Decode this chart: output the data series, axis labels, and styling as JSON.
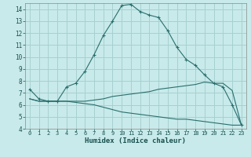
{
  "xlabel": "Humidex (Indice chaleur)",
  "background_color": "#c8eaea",
  "plot_bg_color": "#c8eaea",
  "grid_color": "#a8d0d0",
  "line_color": "#2a6e6e",
  "xlim": [
    -0.5,
    23.5
  ],
  "ylim": [
    4,
    14.5
  ],
  "yticks": [
    4,
    5,
    6,
    7,
    8,
    9,
    10,
    11,
    12,
    13,
    14
  ],
  "xticks": [
    0,
    1,
    2,
    3,
    4,
    5,
    6,
    7,
    8,
    9,
    10,
    11,
    12,
    13,
    14,
    15,
    16,
    17,
    18,
    19,
    20,
    21,
    22,
    23
  ],
  "curve1_x": [
    0,
    1,
    2,
    3,
    4,
    5,
    6,
    7,
    8,
    9,
    10,
    11,
    12,
    13,
    14,
    15,
    16,
    17,
    18,
    19,
    20,
    21,
    22,
    23
  ],
  "curve1_y": [
    7.3,
    6.5,
    6.3,
    6.3,
    7.5,
    7.8,
    8.8,
    10.2,
    11.8,
    13.0,
    14.3,
    14.4,
    13.8,
    13.5,
    13.3,
    12.2,
    10.8,
    9.8,
    9.3,
    8.5,
    7.8,
    7.5,
    6.0,
    4.3
  ],
  "curve2_x": [
    0,
    1,
    2,
    3,
    4,
    5,
    6,
    7,
    8,
    9,
    10,
    11,
    12,
    13,
    14,
    15,
    16,
    17,
    18,
    19,
    20,
    21,
    22,
    23
  ],
  "curve2_y": [
    6.5,
    6.3,
    6.3,
    6.3,
    6.3,
    6.3,
    6.3,
    6.4,
    6.5,
    6.7,
    6.8,
    6.9,
    7.0,
    7.1,
    7.3,
    7.4,
    7.5,
    7.6,
    7.7,
    7.9,
    7.8,
    7.8,
    7.2,
    4.3
  ],
  "curve3_x": [
    0,
    1,
    2,
    3,
    4,
    5,
    6,
    7,
    8,
    9,
    10,
    11,
    12,
    13,
    14,
    15,
    16,
    17,
    18,
    19,
    20,
    21,
    22,
    23
  ],
  "curve3_y": [
    6.5,
    6.3,
    6.3,
    6.3,
    6.3,
    6.2,
    6.1,
    6.0,
    5.8,
    5.6,
    5.4,
    5.3,
    5.2,
    5.1,
    5.0,
    4.9,
    4.8,
    4.8,
    4.7,
    4.6,
    4.5,
    4.4,
    4.3,
    4.3
  ]
}
